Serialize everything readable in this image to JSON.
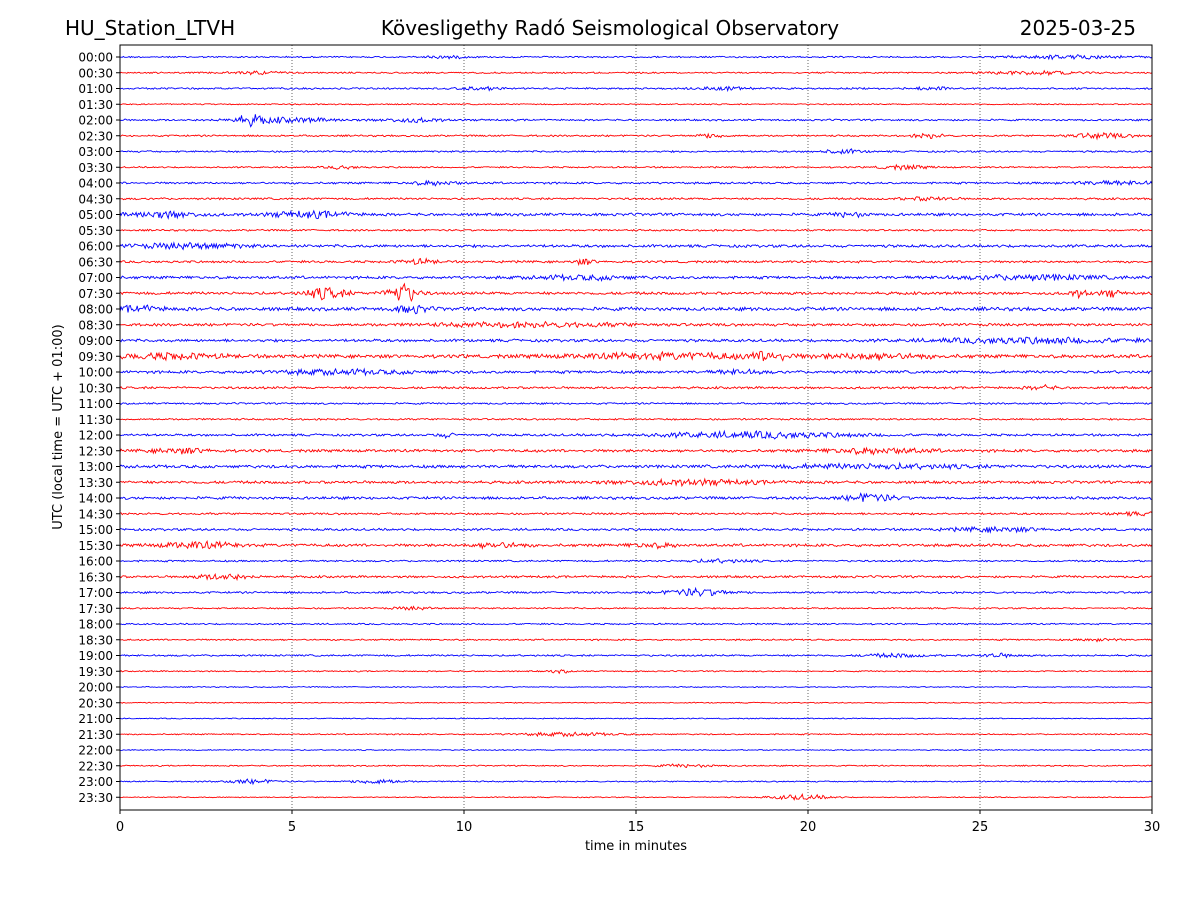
{
  "header": {
    "station": "HU_Station_LTVH",
    "title": "Kövesligethy Radó Seismological Observatory",
    "date": "2025-03-25"
  },
  "chart_data": {
    "type": "line",
    "xlabel": "time in minutes",
    "ylabel": "UTC (local time = UTC + 01:00)",
    "xlim": [
      0,
      30
    ],
    "x_ticks": [
      "0",
      "5",
      "10",
      "15",
      "20",
      "25",
      "30"
    ],
    "x_tick_values": [
      0,
      5,
      10,
      15,
      20,
      25,
      30
    ],
    "grid": "vertical dotted lines at x ticks",
    "row_colors": [
      "#0000ff",
      "#ff0000"
    ],
    "rows": [
      {
        "label": "00:00",
        "level": 0.12,
        "events": [
          {
            "t": 9.5,
            "a": 0.2,
            "w": 0.4
          },
          {
            "t": 27.5,
            "a": 0.25,
            "w": 1.2
          }
        ]
      },
      {
        "label": "00:30",
        "level": 0.12,
        "events": [
          {
            "t": 4.0,
            "a": 0.2,
            "w": 0.6
          },
          {
            "t": 26.5,
            "a": 0.25,
            "w": 1.0
          }
        ]
      },
      {
        "label": "01:00",
        "level": 0.14,
        "events": [
          {
            "t": 10.5,
            "a": 0.2,
            "w": 0.4
          },
          {
            "t": 17.5,
            "a": 0.2,
            "w": 0.6
          },
          {
            "t": 23.5,
            "a": 0.2,
            "w": 0.4
          }
        ]
      },
      {
        "label": "01:30",
        "level": 0.1,
        "events": []
      },
      {
        "label": "02:00",
        "level": 0.14,
        "events": [
          {
            "t": 3.8,
            "a": 0.6,
            "w": 0.3
          },
          {
            "t": 4.8,
            "a": 0.35,
            "w": 1.0
          },
          {
            "t": 8.5,
            "a": 0.3,
            "w": 0.6
          }
        ]
      },
      {
        "label": "02:30",
        "level": 0.14,
        "events": [
          {
            "t": 17.2,
            "a": 0.3,
            "w": 0.3
          },
          {
            "t": 23.5,
            "a": 0.35,
            "w": 0.3
          },
          {
            "t": 28.5,
            "a": 0.4,
            "w": 0.6
          }
        ]
      },
      {
        "label": "03:00",
        "level": 0.14,
        "events": [
          {
            "t": 21.0,
            "a": 0.3,
            "w": 0.4
          }
        ]
      },
      {
        "label": "03:30",
        "level": 0.12,
        "events": [
          {
            "t": 6.5,
            "a": 0.25,
            "w": 0.3
          },
          {
            "t": 22.8,
            "a": 0.3,
            "w": 0.5
          }
        ]
      },
      {
        "label": "04:00",
        "level": 0.16,
        "events": [
          {
            "t": 9.2,
            "a": 0.3,
            "w": 0.5
          },
          {
            "t": 29.0,
            "a": 0.25,
            "w": 1.0
          }
        ]
      },
      {
        "label": "04:30",
        "level": 0.16,
        "events": [
          {
            "t": 23.5,
            "a": 0.25,
            "w": 0.5
          }
        ]
      },
      {
        "label": "05:00",
        "level": 0.22,
        "events": [
          {
            "t": 1.3,
            "a": 0.45,
            "w": 0.7
          },
          {
            "t": 5.5,
            "a": 0.45,
            "w": 0.8
          },
          {
            "t": 21.2,
            "a": 0.35,
            "w": 0.3
          }
        ]
      },
      {
        "label": "05:30",
        "level": 0.14,
        "events": []
      },
      {
        "label": "06:00",
        "level": 0.22,
        "events": [
          {
            "t": 2.0,
            "a": 0.35,
            "w": 1.2
          }
        ]
      },
      {
        "label": "06:30",
        "level": 0.18,
        "events": [
          {
            "t": 8.7,
            "a": 0.35,
            "w": 0.4
          },
          {
            "t": 13.5,
            "a": 0.4,
            "w": 0.2
          }
        ]
      },
      {
        "label": "07:00",
        "level": 0.22,
        "events": [
          {
            "t": 13.5,
            "a": 0.3,
            "w": 1.0
          },
          {
            "t": 26.5,
            "a": 0.35,
            "w": 1.5
          }
        ]
      },
      {
        "label": "07:30",
        "level": 0.22,
        "events": [
          {
            "t": 6.0,
            "a": 0.9,
            "w": 0.4
          },
          {
            "t": 8.2,
            "a": 1.6,
            "w": 0.3
          },
          {
            "t": 27.9,
            "a": 0.5,
            "w": 0.2
          },
          {
            "t": 28.8,
            "a": 0.5,
            "w": 0.2
          }
        ]
      },
      {
        "label": "08:00",
        "level": 0.28,
        "events": [
          {
            "t": 0.5,
            "a": 0.4,
            "w": 0.5
          },
          {
            "t": 8.5,
            "a": 0.6,
            "w": 0.3
          }
        ]
      },
      {
        "label": "08:30",
        "level": 0.22,
        "events": [
          {
            "t": 12.0,
            "a": 0.3,
            "w": 2.0
          }
        ]
      },
      {
        "label": "09:00",
        "level": 0.22,
        "events": [
          {
            "t": 26.5,
            "a": 0.4,
            "w": 2.0
          }
        ]
      },
      {
        "label": "09:30",
        "level": 0.28,
        "events": [
          {
            "t": 1.5,
            "a": 0.4,
            "w": 1.0
          },
          {
            "t": 16.0,
            "a": 0.4,
            "w": 2.0
          },
          {
            "t": 18.9,
            "a": 0.7,
            "w": 0.3
          },
          {
            "t": 22.0,
            "a": 0.4,
            "w": 1.0
          }
        ]
      },
      {
        "label": "10:00",
        "level": 0.22,
        "events": [
          {
            "t": 6.5,
            "a": 0.3,
            "w": 1.5
          },
          {
            "t": 18.0,
            "a": 0.3,
            "w": 0.5
          }
        ]
      },
      {
        "label": "10:30",
        "level": 0.18,
        "events": [
          {
            "t": 26.8,
            "a": 0.3,
            "w": 0.3
          }
        ]
      },
      {
        "label": "11:00",
        "level": 0.14,
        "events": []
      },
      {
        "label": "11:30",
        "level": 0.14,
        "events": []
      },
      {
        "label": "12:00",
        "level": 0.18,
        "events": [
          {
            "t": 9.5,
            "a": 0.3,
            "w": 0.2
          },
          {
            "t": 18.5,
            "a": 0.45,
            "w": 2.0
          }
        ]
      },
      {
        "label": "12:30",
        "level": 0.22,
        "events": [
          {
            "t": 1.8,
            "a": 0.35,
            "w": 0.6
          },
          {
            "t": 22.0,
            "a": 0.4,
            "w": 1.0
          }
        ]
      },
      {
        "label": "13:00",
        "level": 0.24,
        "events": [
          {
            "t": 22.0,
            "a": 0.3,
            "w": 2.0
          }
        ]
      },
      {
        "label": "13:30",
        "level": 0.22,
        "events": [
          {
            "t": 16.5,
            "a": 0.35,
            "w": 1.5
          }
        ]
      },
      {
        "label": "14:00",
        "level": 0.22,
        "events": [
          {
            "t": 21.8,
            "a": 0.55,
            "w": 0.5
          }
        ]
      },
      {
        "label": "14:30",
        "level": 0.16,
        "events": [
          {
            "t": 29.5,
            "a": 0.2,
            "w": 0.5
          }
        ]
      },
      {
        "label": "15:00",
        "level": 0.18,
        "events": [
          {
            "t": 25.5,
            "a": 0.3,
            "w": 1.0
          }
        ]
      },
      {
        "label": "15:30",
        "level": 0.22,
        "events": [
          {
            "t": 2.3,
            "a": 0.45,
            "w": 0.8
          },
          {
            "t": 11.0,
            "a": 0.4,
            "w": 0.5
          },
          {
            "t": 15.5,
            "a": 0.3,
            "w": 0.5
          }
        ]
      },
      {
        "label": "16:00",
        "level": 0.14,
        "events": [
          {
            "t": 17.5,
            "a": 0.25,
            "w": 0.6
          }
        ]
      },
      {
        "label": "16:30",
        "level": 0.18,
        "events": [
          {
            "t": 3.0,
            "a": 0.45,
            "w": 0.5
          }
        ]
      },
      {
        "label": "17:00",
        "level": 0.16,
        "events": [
          {
            "t": 16.8,
            "a": 0.55,
            "w": 0.6
          }
        ]
      },
      {
        "label": "17:30",
        "level": 0.12,
        "events": [
          {
            "t": 8.5,
            "a": 0.2,
            "w": 0.4
          }
        ]
      },
      {
        "label": "18:00",
        "level": 0.12,
        "events": []
      },
      {
        "label": "18:30",
        "level": 0.12,
        "events": [
          {
            "t": 28.5,
            "a": 0.2,
            "w": 0.4
          }
        ]
      },
      {
        "label": "19:00",
        "level": 0.14,
        "events": [
          {
            "t": 22.5,
            "a": 0.25,
            "w": 0.6
          },
          {
            "t": 25.5,
            "a": 0.25,
            "w": 0.4
          }
        ]
      },
      {
        "label": "19:30",
        "level": 0.1,
        "events": [
          {
            "t": 12.8,
            "a": 0.25,
            "w": 0.2
          }
        ]
      },
      {
        "label": "20:00",
        "level": 0.08,
        "events": []
      },
      {
        "label": "20:30",
        "level": 0.08,
        "events": []
      },
      {
        "label": "21:00",
        "level": 0.08,
        "events": []
      },
      {
        "label": "21:30",
        "level": 0.1,
        "events": [
          {
            "t": 13.0,
            "a": 0.25,
            "w": 1.0
          }
        ]
      },
      {
        "label": "22:00",
        "level": 0.08,
        "events": []
      },
      {
        "label": "22:30",
        "level": 0.1,
        "events": [
          {
            "t": 16.5,
            "a": 0.2,
            "w": 0.6
          }
        ]
      },
      {
        "label": "23:00",
        "level": 0.1,
        "events": [
          {
            "t": 3.8,
            "a": 0.3,
            "w": 0.5
          },
          {
            "t": 7.5,
            "a": 0.35,
            "w": 0.5
          }
        ]
      },
      {
        "label": "23:30",
        "level": 0.08,
        "events": [
          {
            "t": 19.8,
            "a": 0.4,
            "w": 0.6
          }
        ]
      }
    ]
  }
}
